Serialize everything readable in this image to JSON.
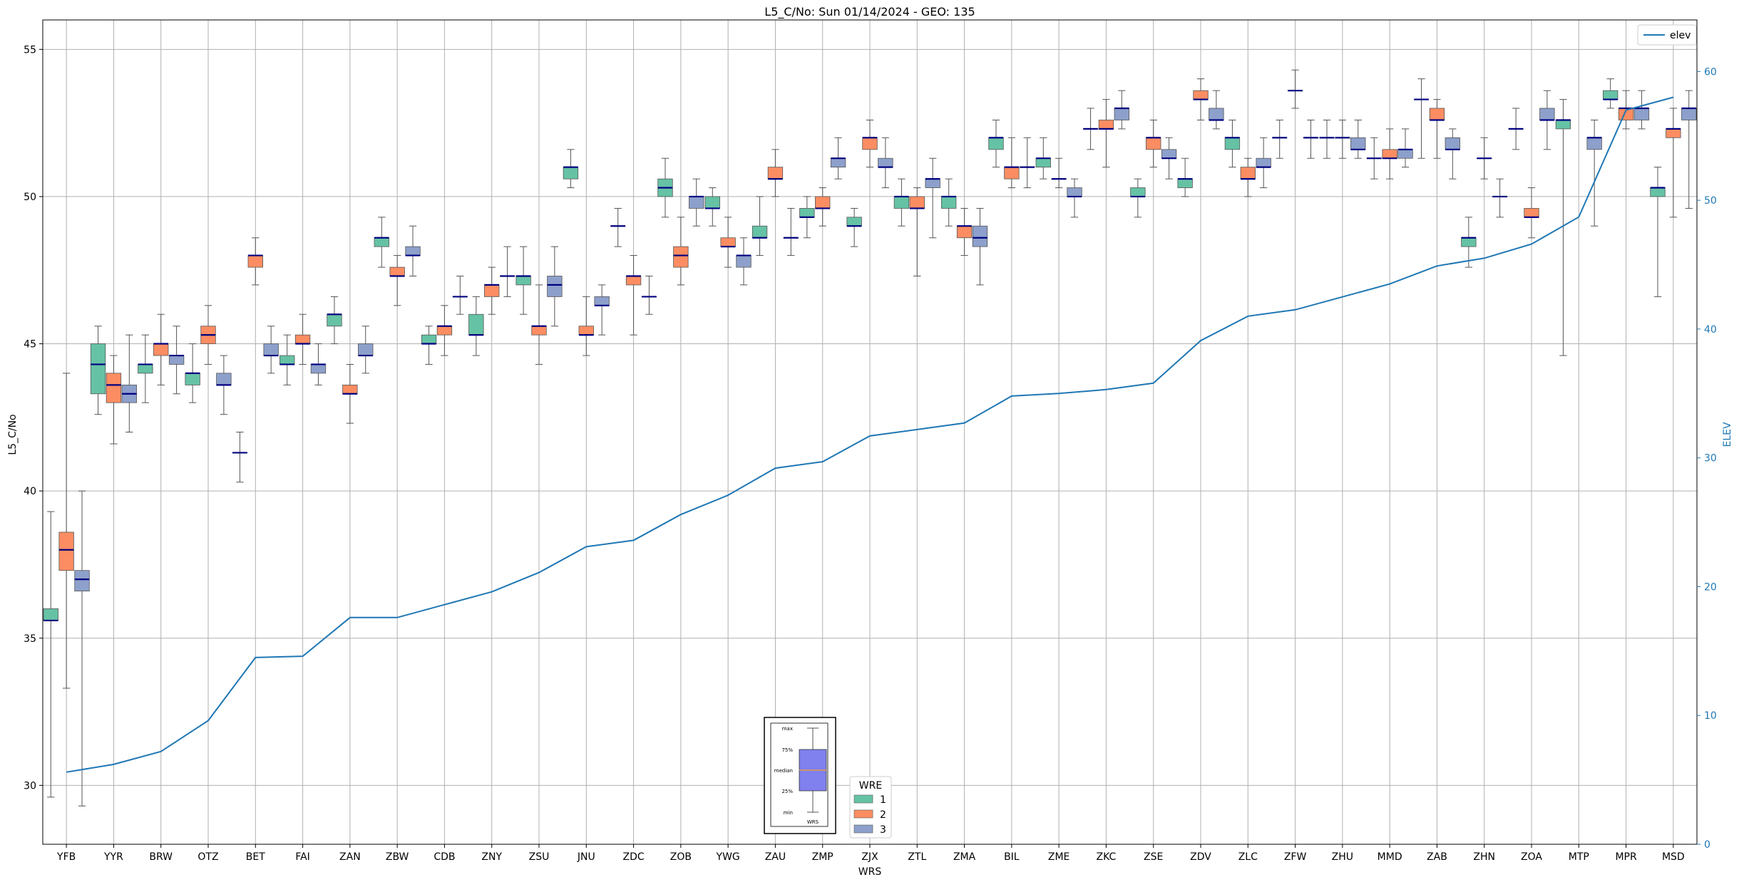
{
  "chart_data": {
    "type": "box",
    "title": "L5_C/No: Sun 01/14/2024 - GEO: 135",
    "xlabel": "WRS",
    "ylabel": "L5_C/No",
    "y2label": "ELEV",
    "ylim": [
      28,
      56
    ],
    "y2lim": [
      0,
      64
    ],
    "yticks": [
      30,
      35,
      40,
      45,
      50,
      55
    ],
    "y2ticks": [
      0,
      10,
      20,
      30,
      40,
      50,
      60
    ],
    "grid": true,
    "categories": [
      "YFB",
      "YYR",
      "BRW",
      "OTZ",
      "BET",
      "FAI",
      "ZAN",
      "ZBW",
      "CDB",
      "ZNY",
      "ZSU",
      "JNU",
      "ZDC",
      "ZOB",
      "YWG",
      "ZAU",
      "ZMP",
      "ZJX",
      "ZTL",
      "ZMA",
      "BIL",
      "ZME",
      "ZKC",
      "ZSE",
      "ZDV",
      "ZLC",
      "ZFW",
      "ZHU",
      "MMD",
      "ZAB",
      "ZHN",
      "ZOA",
      "MTP",
      "MPR",
      "MSD"
    ],
    "colors": {
      "1": "#66c2a5",
      "2": "#fc8d62",
      "3": "#8da0cb",
      "median": "#000080",
      "elev": "#1f77b4"
    },
    "legend_wre": {
      "title": "WRE",
      "position": "bottom-center",
      "entries": [
        {
          "label": "1"
        },
        {
          "label": "2"
        },
        {
          "label": "3"
        }
      ]
    },
    "legend_elev": {
      "position": "top-right",
      "label": "elev"
    },
    "inset": {
      "labels": [
        "max",
        "75%",
        "median",
        "25%",
        "min"
      ],
      "xlabel": "WRS"
    },
    "elev": [
      5.6,
      6.2,
      7.2,
      9.6,
      14.5,
      14.6,
      17.6,
      17.6,
      18.6,
      19.6,
      21.1,
      23.1,
      23.6,
      25.6,
      27.1,
      29.2,
      29.7,
      31.7,
      32.2,
      32.7,
      34.8,
      35.0,
      35.3,
      35.8,
      39.1,
      41.0,
      41.5,
      42.5,
      43.5,
      44.9,
      45.5,
      46.6,
      48.7,
      57.0,
      58.0
    ],
    "boxes": [
      {
        "cat": "YFB",
        "wre": "1",
        "min": 29.6,
        "q1": 35.6,
        "median": 35.6,
        "q3": 36.0,
        "max": 39.3
      },
      {
        "cat": "YFB",
        "wre": "2",
        "min": 33.3,
        "q1": 37.3,
        "median": 38.0,
        "q3": 38.6,
        "max": 44.0
      },
      {
        "cat": "YFB",
        "wre": "3",
        "min": 29.3,
        "q1": 36.6,
        "median": 37.0,
        "q3": 37.3,
        "max": 40.0
      },
      {
        "cat": "YYR",
        "wre": "1",
        "min": 42.6,
        "q1": 43.3,
        "median": 44.3,
        "q3": 45.0,
        "max": 45.6
      },
      {
        "cat": "YYR",
        "wre": "2",
        "min": 41.6,
        "q1": 43.0,
        "median": 43.6,
        "q3": 44.0,
        "max": 44.6
      },
      {
        "cat": "YYR",
        "wre": "3",
        "min": 42.0,
        "q1": 43.0,
        "median": 43.3,
        "q3": 43.6,
        "max": 45.3
      },
      {
        "cat": "BRW",
        "wre": "1",
        "min": 43.0,
        "q1": 44.0,
        "median": 44.3,
        "q3": 44.3,
        "max": 45.3
      },
      {
        "cat": "BRW",
        "wre": "2",
        "min": 43.6,
        "q1": 44.6,
        "median": 45.0,
        "q3": 45.0,
        "max": 46.0
      },
      {
        "cat": "BRW",
        "wre": "3",
        "min": 43.3,
        "q1": 44.3,
        "median": 44.6,
        "q3": 44.6,
        "max": 45.6
      },
      {
        "cat": "OTZ",
        "wre": "1",
        "min": 43.0,
        "q1": 43.6,
        "median": 44.0,
        "q3": 44.0,
        "max": 45.0
      },
      {
        "cat": "OTZ",
        "wre": "2",
        "min": 44.3,
        "q1": 45.0,
        "median": 45.3,
        "q3": 45.6,
        "max": 46.3
      },
      {
        "cat": "OTZ",
        "wre": "3",
        "min": 42.6,
        "q1": 43.6,
        "median": 43.6,
        "q3": 44.0,
        "max": 44.6
      },
      {
        "cat": "BET",
        "wre": "1",
        "min": 40.3,
        "q1": 41.3,
        "median": 41.3,
        "q3": 41.3,
        "max": 42.0
      },
      {
        "cat": "BET",
        "wre": "2",
        "min": 47.0,
        "q1": 47.6,
        "median": 48.0,
        "q3": 48.0,
        "max": 48.6
      },
      {
        "cat": "BET",
        "wre": "3",
        "min": 44.0,
        "q1": 44.6,
        "median": 44.6,
        "q3": 45.0,
        "max": 45.6
      },
      {
        "cat": "FAI",
        "wre": "1",
        "min": 43.6,
        "q1": 44.3,
        "median": 44.3,
        "q3": 44.6,
        "max": 45.3
      },
      {
        "cat": "FAI",
        "wre": "2",
        "min": 44.3,
        "q1": 45.0,
        "median": 45.0,
        "q3": 45.3,
        "max": 46.0
      },
      {
        "cat": "FAI",
        "wre": "3",
        "min": 43.6,
        "q1": 44.0,
        "median": 44.3,
        "q3": 44.3,
        "max": 45.0
      },
      {
        "cat": "ZAN",
        "wre": "1",
        "min": 45.0,
        "q1": 45.6,
        "median": 46.0,
        "q3": 46.0,
        "max": 46.6
      },
      {
        "cat": "ZAN",
        "wre": "2",
        "min": 42.3,
        "q1": 43.3,
        "median": 43.3,
        "q3": 43.6,
        "max": 44.3
      },
      {
        "cat": "ZAN",
        "wre": "3",
        "min": 44.0,
        "q1": 44.6,
        "median": 44.6,
        "q3": 45.0,
        "max": 45.6
      },
      {
        "cat": "ZBW",
        "wre": "1",
        "min": 47.6,
        "q1": 48.3,
        "median": 48.6,
        "q3": 48.6,
        "max": 49.3
      },
      {
        "cat": "ZBW",
        "wre": "2",
        "min": 46.3,
        "q1": 47.3,
        "median": 47.3,
        "q3": 47.6,
        "max": 48.0
      },
      {
        "cat": "ZBW",
        "wre": "3",
        "min": 47.3,
        "q1": 48.0,
        "median": 48.0,
        "q3": 48.3,
        "max": 49.0
      },
      {
        "cat": "CDB",
        "wre": "1",
        "min": 44.3,
        "q1": 45.0,
        "median": 45.0,
        "q3": 45.3,
        "max": 45.6
      },
      {
        "cat": "CDB",
        "wre": "2",
        "min": 44.6,
        "q1": 45.3,
        "median": 45.6,
        "q3": 45.6,
        "max": 46.3
      },
      {
        "cat": "CDB",
        "wre": "3",
        "min": 46.0,
        "q1": 46.6,
        "median": 46.6,
        "q3": 46.6,
        "max": 47.3
      },
      {
        "cat": "ZNY",
        "wre": "1",
        "min": 44.6,
        "q1": 45.3,
        "median": 45.3,
        "q3": 46.0,
        "max": 46.6
      },
      {
        "cat": "ZNY",
        "wre": "2",
        "min": 46.0,
        "q1": 46.6,
        "median": 47.0,
        "q3": 47.0,
        "max": 47.6
      },
      {
        "cat": "ZNY",
        "wre": "3",
        "min": 46.6,
        "q1": 47.3,
        "median": 47.3,
        "q3": 47.3,
        "max": 48.3
      },
      {
        "cat": "ZSU",
        "wre": "1",
        "min": 46.0,
        "q1": 47.0,
        "median": 47.3,
        "q3": 47.3,
        "max": 48.3
      },
      {
        "cat": "ZSU",
        "wre": "2",
        "min": 44.3,
        "q1": 45.3,
        "median": 45.6,
        "q3": 45.6,
        "max": 47.0
      },
      {
        "cat": "ZSU",
        "wre": "3",
        "min": 45.6,
        "q1": 46.6,
        "median": 47.0,
        "q3": 47.3,
        "max": 48.3
      },
      {
        "cat": "JNU",
        "wre": "1",
        "min": 50.3,
        "q1": 50.6,
        "median": 51.0,
        "q3": 51.0,
        "max": 51.6
      },
      {
        "cat": "JNU",
        "wre": "2",
        "min": 44.6,
        "q1": 45.3,
        "median": 45.3,
        "q3": 45.6,
        "max": 46.6
      },
      {
        "cat": "JNU",
        "wre": "3",
        "min": 45.3,
        "q1": 46.3,
        "median": 46.3,
        "q3": 46.6,
        "max": 47.0
      },
      {
        "cat": "ZDC",
        "wre": "1",
        "min": 48.3,
        "q1": 49.0,
        "median": 49.0,
        "q3": 49.0,
        "max": 49.6
      },
      {
        "cat": "ZDC",
        "wre": "2",
        "min": 45.3,
        "q1": 47.0,
        "median": 47.3,
        "q3": 47.3,
        "max": 48.0
      },
      {
        "cat": "ZDC",
        "wre": "3",
        "min": 46.0,
        "q1": 46.6,
        "median": 46.6,
        "q3": 46.6,
        "max": 47.3
      },
      {
        "cat": "ZOB",
        "wre": "1",
        "min": 49.3,
        "q1": 50.0,
        "median": 50.3,
        "q3": 50.6,
        "max": 51.3
      },
      {
        "cat": "ZOB",
        "wre": "2",
        "min": 47.0,
        "q1": 47.6,
        "median": 48.0,
        "q3": 48.3,
        "max": 49.3
      },
      {
        "cat": "ZOB",
        "wre": "3",
        "min": 49.0,
        "q1": 49.6,
        "median": 50.0,
        "q3": 50.0,
        "max": 50.6
      },
      {
        "cat": "YWG",
        "wre": "1",
        "min": 49.0,
        "q1": 49.6,
        "median": 49.6,
        "q3": 50.0,
        "max": 50.3
      },
      {
        "cat": "YWG",
        "wre": "2",
        "min": 47.6,
        "q1": 48.3,
        "median": 48.3,
        "q3": 48.6,
        "max": 49.3
      },
      {
        "cat": "YWG",
        "wre": "3",
        "min": 47.0,
        "q1": 47.6,
        "median": 48.0,
        "q3": 48.0,
        "max": 48.6
      },
      {
        "cat": "ZAU",
        "wre": "1",
        "min": 48.0,
        "q1": 48.6,
        "median": 48.6,
        "q3": 49.0,
        "max": 50.0
      },
      {
        "cat": "ZAU",
        "wre": "2",
        "min": 50.0,
        "q1": 50.6,
        "median": 50.6,
        "q3": 51.0,
        "max": 51.6
      },
      {
        "cat": "ZAU",
        "wre": "3",
        "min": 48.0,
        "q1": 48.6,
        "median": 48.6,
        "q3": 48.6,
        "max": 49.6
      },
      {
        "cat": "ZMP",
        "wre": "1",
        "min": 48.6,
        "q1": 49.3,
        "median": 49.3,
        "q3": 49.6,
        "max": 50.0
      },
      {
        "cat": "ZMP",
        "wre": "2",
        "min": 49.0,
        "q1": 49.6,
        "median": 49.6,
        "q3": 50.0,
        "max": 50.3
      },
      {
        "cat": "ZMP",
        "wre": "3",
        "min": 50.6,
        "q1": 51.0,
        "median": 51.3,
        "q3": 51.3,
        "max": 52.0
      },
      {
        "cat": "ZJX",
        "wre": "1",
        "min": 48.3,
        "q1": 49.0,
        "median": 49.0,
        "q3": 49.3,
        "max": 49.6
      },
      {
        "cat": "ZJX",
        "wre": "2",
        "min": 51.0,
        "q1": 51.6,
        "median": 52.0,
        "q3": 52.0,
        "max": 52.6
      },
      {
        "cat": "ZJX",
        "wre": "3",
        "min": 50.3,
        "q1": 51.0,
        "median": 51.0,
        "q3": 51.3,
        "max": 52.0
      },
      {
        "cat": "ZTL",
        "wre": "1",
        "min": 49.0,
        "q1": 49.6,
        "median": 50.0,
        "q3": 50.0,
        "max": 50.6
      },
      {
        "cat": "ZTL",
        "wre": "2",
        "min": 47.3,
        "q1": 49.6,
        "median": 49.6,
        "q3": 50.0,
        "max": 50.3
      },
      {
        "cat": "ZTL",
        "wre": "3",
        "min": 48.6,
        "q1": 50.3,
        "median": 50.6,
        "q3": 50.6,
        "max": 51.3
      },
      {
        "cat": "ZMA",
        "wre": "1",
        "min": 49.0,
        "q1": 49.6,
        "median": 50.0,
        "q3": 50.0,
        "max": 50.6
      },
      {
        "cat": "ZMA",
        "wre": "2",
        "min": 48.0,
        "q1": 48.6,
        "median": 49.0,
        "q3": 49.0,
        "max": 49.6
      },
      {
        "cat": "ZMA",
        "wre": "3",
        "min": 47.0,
        "q1": 48.3,
        "median": 48.6,
        "q3": 49.0,
        "max": 49.6
      },
      {
        "cat": "BIL",
        "wre": "1",
        "min": 51.0,
        "q1": 51.6,
        "median": 52.0,
        "q3": 52.0,
        "max": 52.6
      },
      {
        "cat": "BIL",
        "wre": "2",
        "min": 50.3,
        "q1": 50.6,
        "median": 51.0,
        "q3": 51.0,
        "max": 52.0
      },
      {
        "cat": "BIL",
        "wre": "3",
        "min": 50.3,
        "q1": 51.0,
        "median": 51.0,
        "q3": 51.0,
        "max": 52.0
      },
      {
        "cat": "ZME",
        "wre": "1",
        "min": 50.6,
        "q1": 51.0,
        "median": 51.3,
        "q3": 51.3,
        "max": 52.0
      },
      {
        "cat": "ZME",
        "wre": "2",
        "min": 50.3,
        "q1": 50.6,
        "median": 50.6,
        "q3": 50.6,
        "max": 51.3
      },
      {
        "cat": "ZME",
        "wre": "3",
        "min": 49.3,
        "q1": 50.0,
        "median": 50.0,
        "q3": 50.3,
        "max": 50.6
      },
      {
        "cat": "ZKC",
        "wre": "1",
        "min": 51.6,
        "q1": 52.3,
        "median": 52.3,
        "q3": 52.3,
        "max": 53.0
      },
      {
        "cat": "ZKC",
        "wre": "2",
        "min": 51.0,
        "q1": 52.3,
        "median": 52.3,
        "q3": 52.6,
        "max": 53.3
      },
      {
        "cat": "ZKC",
        "wre": "3",
        "min": 52.3,
        "q1": 52.6,
        "median": 53.0,
        "q3": 53.0,
        "max": 53.6
      },
      {
        "cat": "ZSE",
        "wre": "1",
        "min": 49.3,
        "q1": 50.0,
        "median": 50.0,
        "q3": 50.3,
        "max": 50.6
      },
      {
        "cat": "ZSE",
        "wre": "2",
        "min": 51.0,
        "q1": 51.6,
        "median": 52.0,
        "q3": 52.0,
        "max": 52.6
      },
      {
        "cat": "ZSE",
        "wre": "3",
        "min": 50.6,
        "q1": 51.3,
        "median": 51.3,
        "q3": 51.6,
        "max": 52.0
      },
      {
        "cat": "ZDV",
        "wre": "1",
        "min": 50.0,
        "q1": 50.3,
        "median": 50.6,
        "q3": 50.6,
        "max": 51.3
      },
      {
        "cat": "ZDV",
        "wre": "2",
        "min": 52.6,
        "q1": 53.3,
        "median": 53.3,
        "q3": 53.6,
        "max": 54.0
      },
      {
        "cat": "ZDV",
        "wre": "3",
        "min": 52.3,
        "q1": 52.6,
        "median": 52.6,
        "q3": 53.0,
        "max": 53.6
      },
      {
        "cat": "ZLC",
        "wre": "1",
        "min": 51.0,
        "q1": 51.6,
        "median": 52.0,
        "q3": 52.0,
        "max": 52.6
      },
      {
        "cat": "ZLC",
        "wre": "2",
        "min": 50.0,
        "q1": 50.6,
        "median": 50.6,
        "q3": 51.0,
        "max": 51.3
      },
      {
        "cat": "ZLC",
        "wre": "3",
        "min": 50.3,
        "q1": 51.0,
        "median": 51.0,
        "q3": 51.3,
        "max": 52.0
      },
      {
        "cat": "ZFW",
        "wre": "1",
        "min": 51.3,
        "q1": 52.0,
        "median": 52.0,
        "q3": 52.0,
        "max": 52.6
      },
      {
        "cat": "ZFW",
        "wre": "2",
        "min": 53.0,
        "q1": 53.6,
        "median": 53.6,
        "q3": 53.6,
        "max": 54.3
      },
      {
        "cat": "ZFW",
        "wre": "3",
        "min": 51.3,
        "q1": 52.0,
        "median": 52.0,
        "q3": 52.0,
        "max": 52.6
      },
      {
        "cat": "ZHU",
        "wre": "1",
        "min": 51.3,
        "q1": 52.0,
        "median": 52.0,
        "q3": 52.0,
        "max": 52.6
      },
      {
        "cat": "ZHU",
        "wre": "2",
        "min": 51.3,
        "q1": 52.0,
        "median": 52.0,
        "q3": 52.0,
        "max": 52.6
      },
      {
        "cat": "ZHU",
        "wre": "3",
        "min": 51.3,
        "q1": 51.6,
        "median": 51.6,
        "q3": 52.0,
        "max": 52.6
      },
      {
        "cat": "MMD",
        "wre": "1",
        "min": 50.6,
        "q1": 51.3,
        "median": 51.3,
        "q3": 51.3,
        "max": 52.0
      },
      {
        "cat": "MMD",
        "wre": "2",
        "min": 50.6,
        "q1": 51.3,
        "median": 51.3,
        "q3": 51.6,
        "max": 52.3
      },
      {
        "cat": "MMD",
        "wre": "3",
        "min": 51.0,
        "q1": 51.3,
        "median": 51.6,
        "q3": 51.6,
        "max": 52.3
      },
      {
        "cat": "ZAB",
        "wre": "1",
        "min": 51.3,
        "q1": 53.3,
        "median": 53.3,
        "q3": 53.3,
        "max": 54.0
      },
      {
        "cat": "ZAB",
        "wre": "2",
        "min": 51.3,
        "q1": 52.6,
        "median": 52.6,
        "q3": 53.0,
        "max": 53.3
      },
      {
        "cat": "ZAB",
        "wre": "3",
        "min": 50.6,
        "q1": 51.6,
        "median": 51.6,
        "q3": 52.0,
        "max": 52.3
      },
      {
        "cat": "ZHN",
        "wre": "1",
        "min": 47.6,
        "q1": 48.3,
        "median": 48.6,
        "q3": 48.6,
        "max": 49.3
      },
      {
        "cat": "ZHN",
        "wre": "2",
        "min": 50.6,
        "q1": 51.3,
        "median": 51.3,
        "q3": 51.3,
        "max": 52.0
      },
      {
        "cat": "ZHN",
        "wre": "3",
        "min": 49.3,
        "q1": 50.0,
        "median": 50.0,
        "q3": 50.0,
        "max": 50.6
      },
      {
        "cat": "ZOA",
        "wre": "1",
        "min": 51.6,
        "q1": 52.3,
        "median": 52.3,
        "q3": 52.3,
        "max": 53.0
      },
      {
        "cat": "ZOA",
        "wre": "2",
        "min": 48.6,
        "q1": 49.3,
        "median": 49.3,
        "q3": 49.6,
        "max": 50.3
      },
      {
        "cat": "ZOA",
        "wre": "3",
        "min": 51.6,
        "q1": 52.6,
        "median": 52.6,
        "q3": 53.0,
        "max": 53.6
      },
      {
        "cat": "MTP",
        "wre": "1",
        "min": 44.6,
        "q1": 52.3,
        "median": 52.6,
        "q3": 52.6,
        "max": 53.3
      },
      {
        "cat": "MTP",
        "wre": "2",
        "min": null,
        "q1": null,
        "median": null,
        "q3": null,
        "max": null
      },
      {
        "cat": "MTP",
        "wre": "3",
        "min": 49.0,
        "q1": 51.6,
        "median": 52.0,
        "q3": 52.0,
        "max": 52.6
      },
      {
        "cat": "MPR",
        "wre": "1",
        "min": 53.0,
        "q1": 53.3,
        "median": 53.3,
        "q3": 53.6,
        "max": 54.0
      },
      {
        "cat": "MPR",
        "wre": "2",
        "min": 52.3,
        "q1": 52.6,
        "median": 53.0,
        "q3": 53.0,
        "max": 53.6
      },
      {
        "cat": "MPR",
        "wre": "3",
        "min": 52.3,
        "q1": 52.6,
        "median": 53.0,
        "q3": 53.0,
        "max": 53.6
      },
      {
        "cat": "MSD",
        "wre": "1",
        "min": 46.6,
        "q1": 50.0,
        "median": 50.3,
        "q3": 50.3,
        "max": 51.0
      },
      {
        "cat": "MSD",
        "wre": "2",
        "min": 49.3,
        "q1": 52.0,
        "median": 52.3,
        "q3": 52.3,
        "max": 53.0
      },
      {
        "cat": "MSD",
        "wre": "3",
        "min": 49.6,
        "q1": 52.6,
        "median": 53.0,
        "q3": 53.0,
        "max": 53.6
      }
    ]
  }
}
